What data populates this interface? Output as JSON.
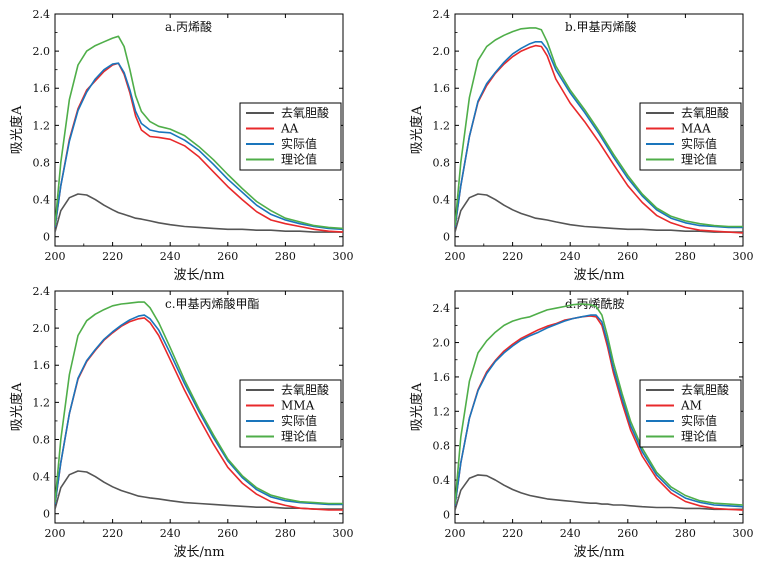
{
  "chart_data": [
    {
      "type": "line",
      "title": "a.丙烯酸",
      "xlabel": "波长/nm",
      "ylabel": "吸光度A",
      "xlim": [
        200,
        300
      ],
      "ylim": [
        -0.1,
        2.4
      ],
      "xticks": [
        200,
        220,
        240,
        260,
        280,
        300
      ],
      "yticks": [
        0,
        0.4,
        0.8,
        1.2,
        1.6,
        2.0,
        2.4
      ],
      "ytick_labels": [
        "0",
        "0.4",
        "0.8",
        "1.2",
        "1.6",
        "2.0",
        "2.4"
      ],
      "legend_position": "middle-right",
      "x": [
        200,
        202,
        205,
        208,
        211,
        214,
        217,
        220,
        222,
        224,
        226,
        228,
        230,
        233,
        236,
        240,
        245,
        250,
        255,
        260,
        265,
        270,
        275,
        280,
        285,
        290,
        295,
        300
      ],
      "series": [
        {
          "name": "去氧胆酸",
          "color": "#555555",
          "values": [
            0.05,
            0.28,
            0.42,
            0.46,
            0.45,
            0.4,
            0.34,
            0.29,
            0.26,
            0.24,
            0.22,
            0.2,
            0.19,
            0.17,
            0.15,
            0.13,
            0.11,
            0.1,
            0.09,
            0.08,
            0.08,
            0.07,
            0.07,
            0.06,
            0.06,
            0.05,
            0.05,
            0.05
          ]
        },
        {
          "name": "AA",
          "color": "#e8292b",
          "values": [
            0.1,
            0.55,
            1.05,
            1.38,
            1.58,
            1.68,
            1.78,
            1.85,
            1.87,
            1.75,
            1.55,
            1.3,
            1.15,
            1.08,
            1.07,
            1.05,
            0.98,
            0.86,
            0.7,
            0.54,
            0.4,
            0.27,
            0.18,
            0.14,
            0.11,
            0.08,
            0.06,
            0.05
          ]
        },
        {
          "name": "实际值",
          "color": "#1a75bc",
          "values": [
            0.1,
            0.55,
            1.03,
            1.36,
            1.56,
            1.7,
            1.8,
            1.86,
            1.87,
            1.77,
            1.58,
            1.35,
            1.22,
            1.15,
            1.13,
            1.12,
            1.04,
            0.93,
            0.78,
            0.62,
            0.48,
            0.34,
            0.24,
            0.18,
            0.14,
            0.11,
            0.09,
            0.08
          ]
        },
        {
          "name": "理论值",
          "color": "#4fae49",
          "values": [
            0.12,
            0.8,
            1.48,
            1.85,
            2.0,
            2.06,
            2.1,
            2.14,
            2.16,
            2.05,
            1.8,
            1.52,
            1.35,
            1.24,
            1.19,
            1.16,
            1.09,
            0.97,
            0.83,
            0.67,
            0.52,
            0.38,
            0.28,
            0.2,
            0.16,
            0.12,
            0.1,
            0.09
          ]
        }
      ]
    },
    {
      "type": "line",
      "title": "b.甲基丙烯酸",
      "xlabel": "波长/nm",
      "ylabel": "吸光度A",
      "xlim": [
        200,
        300
      ],
      "ylim": [
        -0.1,
        2.4
      ],
      "xticks": [
        200,
        220,
        240,
        260,
        280,
        300
      ],
      "yticks": [
        0,
        0.4,
        0.8,
        1.2,
        1.6,
        2.0,
        2.4
      ],
      "ytick_labels": [
        "0",
        "0.4",
        "0.8",
        "1.2",
        "1.6",
        "2.0",
        "2.4"
      ],
      "legend_position": "middle-right",
      "x": [
        200,
        202,
        205,
        208,
        211,
        214,
        217,
        220,
        223,
        226,
        228,
        230,
        232,
        235,
        240,
        245,
        250,
        255,
        260,
        265,
        270,
        275,
        280,
        285,
        290,
        295,
        300
      ],
      "series": [
        {
          "name": "去氧胆酸",
          "color": "#555555",
          "values": [
            0.05,
            0.28,
            0.42,
            0.46,
            0.45,
            0.4,
            0.34,
            0.29,
            0.25,
            0.22,
            0.2,
            0.19,
            0.18,
            0.16,
            0.13,
            0.11,
            0.1,
            0.09,
            0.08,
            0.08,
            0.07,
            0.07,
            0.06,
            0.06,
            0.05,
            0.05,
            0.05
          ]
        },
        {
          "name": "MAA",
          "color": "#e8292b",
          "values": [
            0.1,
            0.55,
            1.08,
            1.45,
            1.63,
            1.76,
            1.86,
            1.94,
            2.0,
            2.04,
            2.06,
            2.05,
            1.95,
            1.7,
            1.44,
            1.24,
            1.02,
            0.78,
            0.55,
            0.37,
            0.23,
            0.15,
            0.1,
            0.07,
            0.06,
            0.05,
            0.04
          ]
        },
        {
          "name": "实际值",
          "color": "#1a75bc",
          "values": [
            0.1,
            0.55,
            1.08,
            1.46,
            1.65,
            1.77,
            1.88,
            1.97,
            2.03,
            2.08,
            2.1,
            2.1,
            2.02,
            1.8,
            1.55,
            1.34,
            1.11,
            0.86,
            0.63,
            0.44,
            0.29,
            0.2,
            0.15,
            0.12,
            0.11,
            0.1,
            0.1
          ]
        },
        {
          "name": "理论值",
          "color": "#4fae49",
          "values": [
            0.12,
            0.8,
            1.5,
            1.9,
            2.05,
            2.12,
            2.17,
            2.21,
            2.24,
            2.25,
            2.25,
            2.23,
            2.1,
            1.84,
            1.58,
            1.37,
            1.14,
            0.89,
            0.66,
            0.46,
            0.31,
            0.22,
            0.17,
            0.14,
            0.12,
            0.11,
            0.11
          ]
        }
      ]
    },
    {
      "type": "line",
      "title": "c.甲基丙烯酸甲酯",
      "xlabel": "波长/nm",
      "ylabel": "吸光度A",
      "xlim": [
        200,
        300
      ],
      "ylim": [
        -0.1,
        2.4
      ],
      "xticks": [
        200,
        220,
        240,
        260,
        280,
        300
      ],
      "yticks": [
        0,
        0.4,
        0.8,
        1.2,
        1.6,
        2.0,
        2.4
      ],
      "ytick_labels": [
        "0",
        "0.4",
        "0.8",
        "1.2",
        "1.6",
        "2.0",
        "2.4"
      ],
      "legend_position": "middle-right",
      "x": [
        200,
        202,
        205,
        208,
        211,
        214,
        217,
        220,
        223,
        226,
        229,
        231,
        233,
        236,
        240,
        245,
        250,
        255,
        260,
        265,
        270,
        275,
        280,
        285,
        290,
        295,
        300
      ],
      "series": [
        {
          "name": "去氧胆酸",
          "color": "#555555",
          "values": [
            0.05,
            0.28,
            0.42,
            0.46,
            0.45,
            0.4,
            0.34,
            0.29,
            0.25,
            0.22,
            0.19,
            0.18,
            0.17,
            0.16,
            0.14,
            0.12,
            0.11,
            0.1,
            0.09,
            0.08,
            0.07,
            0.07,
            0.06,
            0.06,
            0.05,
            0.05,
            0.05
          ]
        },
        {
          "name": "MMA",
          "color": "#e8292b",
          "values": [
            0.1,
            0.55,
            1.08,
            1.45,
            1.64,
            1.76,
            1.87,
            1.95,
            2.02,
            2.07,
            2.1,
            2.11,
            2.06,
            1.92,
            1.66,
            1.33,
            1.03,
            0.75,
            0.5,
            0.33,
            0.21,
            0.13,
            0.09,
            0.06,
            0.05,
            0.04,
            0.04
          ]
        },
        {
          "name": "实际值",
          "color": "#1a75bc",
          "values": [
            0.1,
            0.55,
            1.08,
            1.46,
            1.65,
            1.77,
            1.88,
            1.96,
            2.03,
            2.09,
            2.13,
            2.14,
            2.1,
            1.98,
            1.73,
            1.4,
            1.1,
            0.82,
            0.57,
            0.39,
            0.26,
            0.18,
            0.14,
            0.12,
            0.11,
            0.1,
            0.1
          ]
        },
        {
          "name": "理论值",
          "color": "#4fae49",
          "values": [
            0.12,
            0.8,
            1.5,
            1.92,
            2.08,
            2.15,
            2.2,
            2.24,
            2.26,
            2.27,
            2.28,
            2.28,
            2.22,
            2.06,
            1.79,
            1.44,
            1.13,
            0.85,
            0.59,
            0.41,
            0.28,
            0.2,
            0.16,
            0.13,
            0.12,
            0.11,
            0.11
          ]
        }
      ]
    },
    {
      "type": "line",
      "title": "d.丙烯酰胺",
      "xlabel": "波长/nm",
      "ylabel": "吸光度A",
      "xlim": [
        200,
        300
      ],
      "ylim": [
        -0.1,
        2.6
      ],
      "xticks": [
        200,
        220,
        240,
        260,
        280,
        300
      ],
      "yticks": [
        0,
        0.4,
        0.8,
        1.2,
        1.6,
        2.0,
        2.4
      ],
      "ytick_labels": [
        "0",
        "0.4",
        "0.8",
        "1.2",
        "1.6",
        "2.0",
        "2.4"
      ],
      "legend_position": "middle-right",
      "x": [
        200,
        202,
        205,
        208,
        211,
        214,
        217,
        220,
        223,
        226,
        229,
        232,
        235,
        238,
        241,
        244,
        247,
        249,
        251,
        253,
        255,
        258,
        261,
        265,
        270,
        275,
        280,
        285,
        290,
        295,
        300
      ],
      "series": [
        {
          "name": "去氧胆酸",
          "color": "#555555",
          "values": [
            0.05,
            0.28,
            0.42,
            0.46,
            0.45,
            0.4,
            0.34,
            0.29,
            0.25,
            0.22,
            0.2,
            0.18,
            0.17,
            0.16,
            0.15,
            0.14,
            0.13,
            0.13,
            0.12,
            0.12,
            0.11,
            0.11,
            0.1,
            0.09,
            0.08,
            0.08,
            0.07,
            0.07,
            0.06,
            0.06,
            0.06
          ]
        },
        {
          "name": "AM",
          "color": "#e8292b",
          "values": [
            0.1,
            0.6,
            1.12,
            1.45,
            1.66,
            1.79,
            1.9,
            1.98,
            2.05,
            2.1,
            2.15,
            2.19,
            2.22,
            2.26,
            2.28,
            2.3,
            2.31,
            2.3,
            2.2,
            1.95,
            1.65,
            1.3,
            0.98,
            0.68,
            0.42,
            0.25,
            0.15,
            0.1,
            0.07,
            0.06,
            0.05
          ]
        },
        {
          "name": "实际值",
          "color": "#1a75bc",
          "values": [
            0.1,
            0.6,
            1.12,
            1.44,
            1.64,
            1.78,
            1.88,
            1.96,
            2.03,
            2.08,
            2.12,
            2.17,
            2.21,
            2.25,
            2.28,
            2.3,
            2.32,
            2.32,
            2.24,
            2.0,
            1.7,
            1.35,
            1.03,
            0.73,
            0.46,
            0.29,
            0.19,
            0.14,
            0.11,
            0.1,
            0.09
          ]
        },
        {
          "name": "理论值",
          "color": "#4fae49",
          "values": [
            0.12,
            0.9,
            1.55,
            1.88,
            2.02,
            2.12,
            2.2,
            2.25,
            2.28,
            2.3,
            2.34,
            2.38,
            2.4,
            2.42,
            2.44,
            2.45,
            2.44,
            2.42,
            2.32,
            2.07,
            1.77,
            1.41,
            1.08,
            0.77,
            0.49,
            0.32,
            0.22,
            0.16,
            0.13,
            0.12,
            0.11
          ]
        }
      ]
    }
  ]
}
